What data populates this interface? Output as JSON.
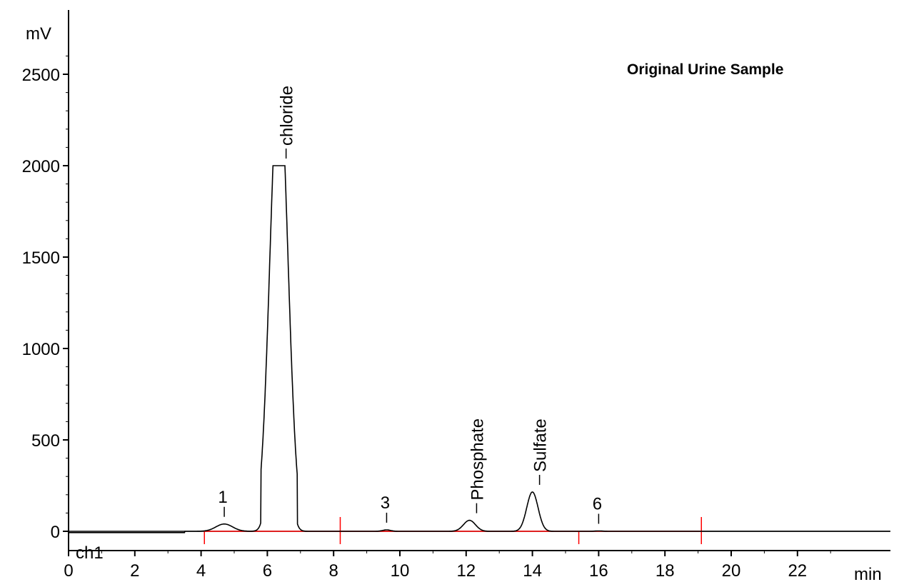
{
  "chart_data": {
    "type": "line",
    "title": "Original Urine Sample",
    "xlabel": "min",
    "ylabel": "mV",
    "channel_label": "ch1",
    "xlim": [
      0,
      24.8
    ],
    "ylim": [
      -100,
      2750
    ],
    "x_ticks": [
      0,
      2,
      4,
      6,
      8,
      10,
      12,
      14,
      16,
      18,
      20,
      22
    ],
    "y_ticks": [
      0,
      500,
      1000,
      1500,
      2000,
      2500
    ],
    "grid": false,
    "colors": {
      "trace": "#000000",
      "baseline": "#ff0000",
      "axis": "#000000"
    },
    "peaks": [
      {
        "label": "1",
        "time": 4.7,
        "height": 40,
        "width": 0.25
      },
      {
        "label": "chloride",
        "time": 6.35,
        "height": 2000,
        "width": 0.2,
        "saturated": true
      },
      {
        "label": "3",
        "time": 9.6,
        "height": 8,
        "width": 0.12
      },
      {
        "label": "Phosphate",
        "time": 12.1,
        "height": 60,
        "width": 0.18
      },
      {
        "label": "Sulfate",
        "time": 14.0,
        "height": 215,
        "width": 0.17
      },
      {
        "label": "6",
        "time": 16.0,
        "height": 2,
        "width": 0.12
      }
    ],
    "integration_baseline": {
      "start": 4.1,
      "end": 19.1,
      "markers": [
        4.1,
        8.2,
        15.4,
        19.1
      ]
    },
    "pre_injection_level": -7,
    "pre_injection_end": 3.5
  }
}
